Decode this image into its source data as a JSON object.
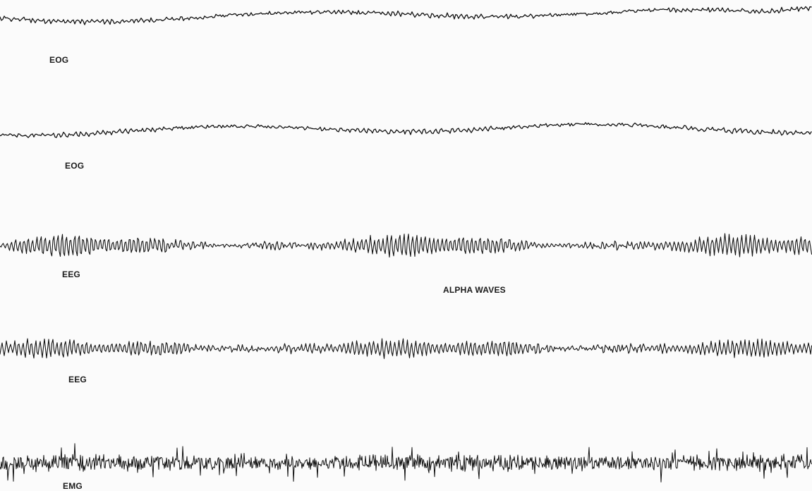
{
  "labels": {
    "eog_1": "EOG",
    "eog_2": "EOG",
    "eeg_1": "EEG",
    "alpha": "ALPHA WAVES",
    "eeg_2": "EEG",
    "emg": "EMG"
  },
  "colors": {
    "trace": "#111111",
    "label": "#1a1a1a",
    "background": "#fbfbfb"
  }
}
